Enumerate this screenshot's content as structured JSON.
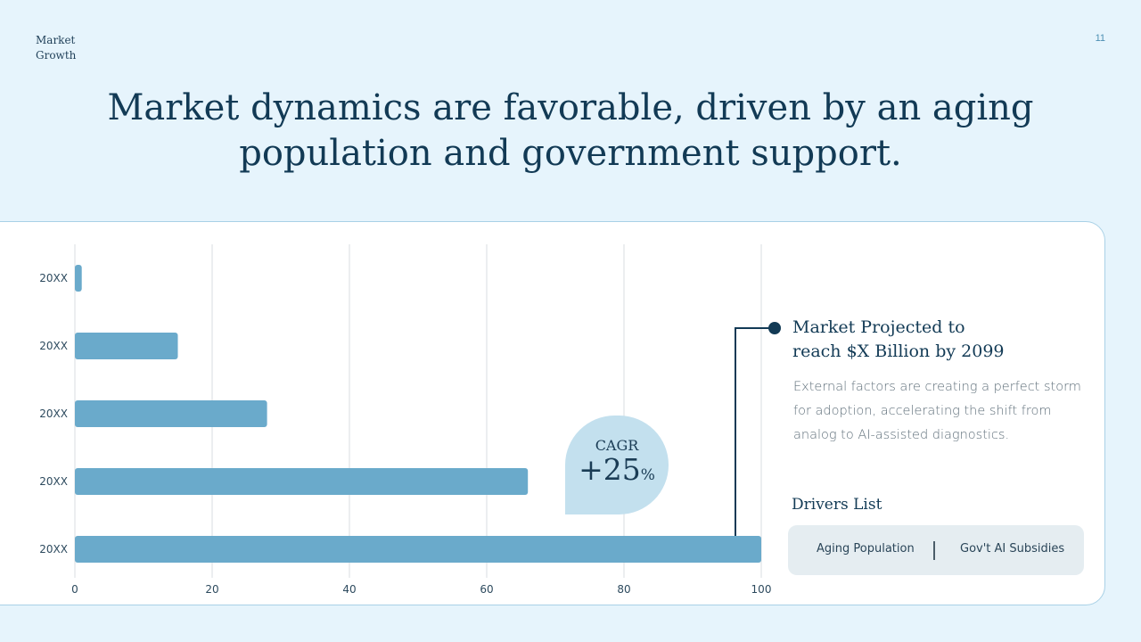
{
  "section_label": [
    "Market",
    "Growth"
  ],
  "page_number": "11",
  "title_lines": [
    "Market dynamics are favorable, driven by an aging",
    "population and government support."
  ],
  "colors": {
    "bar": "#6aaacb",
    "accent": "#123a55",
    "grid": "#d9dee2"
  },
  "chart_data": {
    "type": "bar",
    "orientation": "horizontal",
    "categories": [
      "20XX",
      "20XX",
      "20XX",
      "20XX",
      "20XX"
    ],
    "values": [
      1,
      15,
      28,
      66,
      100
    ],
    "xlim": [
      0,
      100
    ],
    "xticks": [
      0,
      20,
      40,
      60,
      80,
      100
    ],
    "title": "",
    "xlabel": "",
    "ylabel": "",
    "grid": true,
    "legend": false
  },
  "cagr": {
    "label": "CAGR",
    "value": "+25",
    "unit": "%"
  },
  "projection": {
    "title_lines": [
      "Market Projected to",
      "reach $X Billion by 2099"
    ],
    "description_lines": [
      "External factors are creating a perfect storm",
      "for adoption, accelerating the shift from",
      "analog to AI-assisted diagnostics."
    ]
  },
  "drivers": {
    "heading": "Drivers List",
    "items": [
      "Aging Population",
      "Gov't AI Subsidies"
    ]
  }
}
